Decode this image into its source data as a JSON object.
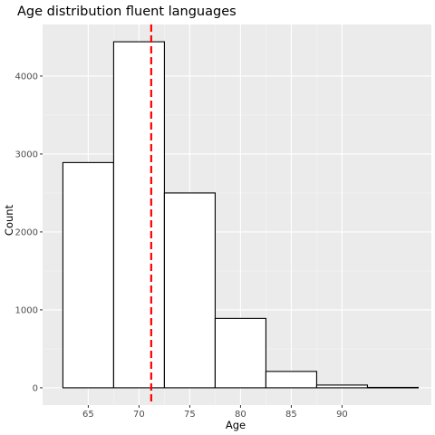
{
  "chart_data": {
    "type": "bar",
    "subtype": "histogram",
    "title": "Age distribution fluent languages",
    "xlabel": "Age",
    "ylabel": "Count",
    "bins": [
      {
        "from": 62.5,
        "to": 67.5,
        "count": 2890
      },
      {
        "from": 67.5,
        "to": 72.5,
        "count": 4440
      },
      {
        "from": 72.5,
        "to": 77.5,
        "count": 2500
      },
      {
        "from": 77.5,
        "to": 82.5,
        "count": 890
      },
      {
        "from": 82.5,
        "to": 87.5,
        "count": 210
      },
      {
        "from": 87.5,
        "to": 92.5,
        "count": 35
      },
      {
        "from": 92.5,
        "to": 97.5,
        "count": 5
      }
    ],
    "x_ticks": [
      65,
      70,
      75,
      80,
      85,
      90
    ],
    "y_ticks": [
      0,
      1000,
      2000,
      3000,
      4000
    ],
    "xlim": [
      60.5,
      98.8
    ],
    "ylim": [
      -222,
      4662
    ],
    "reference_line": {
      "x": 71.2,
      "style": "dashed",
      "color": "#ff0000"
    },
    "panel_background": "#ebebeb",
    "grid": true,
    "bar_fill": "#ffffff",
    "bar_outline": "#000000"
  }
}
